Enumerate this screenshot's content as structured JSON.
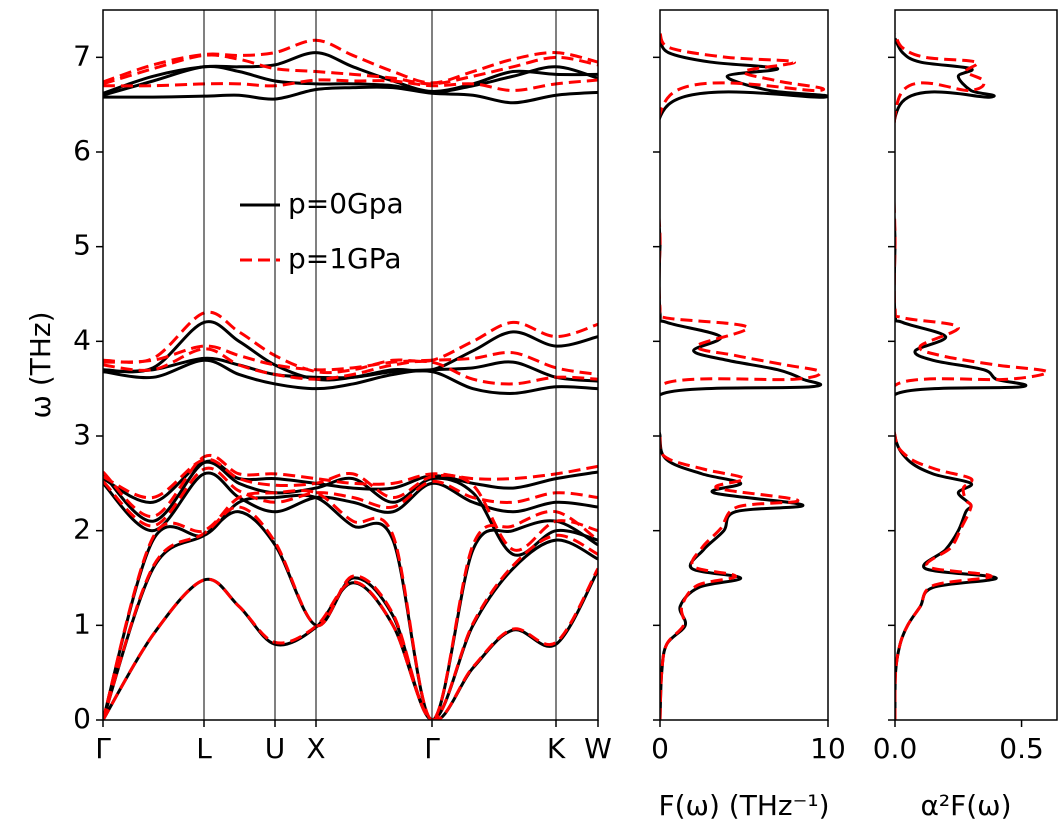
{
  "chart_data": [
    {
      "type": "band",
      "ylabel": "ω (THz)",
      "x": [
        0,
        0.5,
        1.01,
        1.36,
        1.72,
        2.13,
        2.5,
        2.9,
        3.29,
        3.7,
        4.1,
        4.53,
        4.95
      ],
      "xlim": [
        0,
        4.95
      ],
      "xticks": [
        {
          "value": 0,
          "label": "Γ"
        },
        {
          "value": 1.01,
          "label": "L"
        },
        {
          "value": 1.72,
          "label": "U"
        },
        {
          "value": 2.13,
          "label": "X"
        },
        {
          "value": 3.29,
          "label": "Γ"
        },
        {
          "value": 4.53,
          "label": "K"
        },
        {
          "value": 4.95,
          "label": "W"
        }
      ],
      "ylim": [
        0,
        7.5
      ],
      "yticks": [
        0,
        1,
        2,
        3,
        4,
        5,
        6,
        7
      ],
      "legend": true,
      "series": [
        {
          "name": "p=0Gpa",
          "color": "#000000",
          "dashed": false,
          "values": [
            [
              0,
              0.9,
              1.48,
              1.2,
              0.8,
              0.98,
              1.45,
              1.0,
              0,
              0.55,
              0.95,
              0.8,
              1.58
            ],
            [
              0,
              1.6,
              1.95,
              2.2,
              1.85,
              1.0,
              1.5,
              1.1,
              0,
              1.0,
              1.6,
              1.9,
              1.7
            ],
            [
              0,
              1.9,
              1.95,
              2.3,
              2.35,
              2.35,
              2.05,
              1.9,
              0,
              1.8,
              2.0,
              2.1,
              1.85
            ],
            [
              2.5,
              2.0,
              2.6,
              2.35,
              2.2,
              2.35,
              2.3,
              2.2,
              2.5,
              2.3,
              2.2,
              2.3,
              2.25
            ],
            [
              2.55,
              2.3,
              2.72,
              2.5,
              2.4,
              2.45,
              2.55,
              2.3,
              2.55,
              2.4,
              1.75,
              2.0,
              1.9
            ],
            [
              2.6,
              2.1,
              2.72,
              2.55,
              2.55,
              2.5,
              2.45,
              2.45,
              2.58,
              2.5,
              2.45,
              2.55,
              2.62
            ],
            [
              3.68,
              3.62,
              3.8,
              3.65,
              3.55,
              3.5,
              3.55,
              3.65,
              3.68,
              3.5,
              3.45,
              3.52,
              3.5
            ],
            [
              3.68,
              3.7,
              3.82,
              3.75,
              3.65,
              3.62,
              3.62,
              3.68,
              3.7,
              3.72,
              3.78,
              3.62,
              3.58
            ],
            [
              3.7,
              3.72,
              4.2,
              4.0,
              3.75,
              3.6,
              3.62,
              3.7,
              3.7,
              3.9,
              4.1,
              3.95,
              4.05
            ],
            [
              6.58,
              6.58,
              6.59,
              6.6,
              6.56,
              6.66,
              6.68,
              6.68,
              6.62,
              6.6,
              6.52,
              6.6,
              6.63
            ],
            [
              6.6,
              6.75,
              6.9,
              6.85,
              6.75,
              6.72,
              6.72,
              6.7,
              6.63,
              6.7,
              6.8,
              6.9,
              6.78
            ],
            [
              6.62,
              6.8,
              6.9,
              6.9,
              6.92,
              7.05,
              6.9,
              6.75,
              6.64,
              6.72,
              6.85,
              6.82,
              6.82
            ]
          ]
        },
        {
          "name": "p=1GPa",
          "color": "#ff0000",
          "dashed": true,
          "values": [
            [
              0,
              0.9,
              1.48,
              1.2,
              0.82,
              0.99,
              1.46,
              1.0,
              0,
              0.56,
              0.96,
              0.82,
              1.6
            ],
            [
              0,
              1.62,
              1.97,
              2.25,
              1.88,
              1.0,
              1.52,
              1.12,
              0,
              1.02,
              1.63,
              1.95,
              1.75
            ],
            [
              0,
              1.93,
              2.0,
              2.35,
              2.4,
              2.4,
              2.1,
              1.95,
              0,
              1.85,
              2.05,
              2.2,
              1.9
            ],
            [
              2.52,
              2.05,
              2.65,
              2.42,
              2.3,
              2.4,
              2.35,
              2.25,
              2.52,
              2.35,
              2.3,
              2.4,
              2.35
            ],
            [
              2.57,
              2.35,
              2.75,
              2.55,
              2.48,
              2.5,
              2.6,
              2.35,
              2.57,
              2.48,
              1.8,
              2.1,
              2.0
            ],
            [
              2.62,
              2.15,
              2.78,
              2.6,
              2.6,
              2.55,
              2.5,
              2.5,
              2.6,
              2.55,
              2.55,
              2.6,
              2.68
            ],
            [
              3.75,
              3.7,
              3.92,
              3.75,
              3.65,
              3.6,
              3.65,
              3.75,
              3.78,
              3.6,
              3.55,
              3.62,
              3.6
            ],
            [
              3.78,
              3.8,
              3.95,
              3.85,
              3.75,
              3.7,
              3.72,
              3.78,
              3.8,
              3.82,
              3.88,
              3.72,
              3.65
            ],
            [
              3.8,
              3.82,
              4.3,
              4.1,
              3.85,
              3.68,
              3.7,
              3.8,
              3.8,
              4.0,
              4.2,
              4.05,
              4.18
            ],
            [
              6.7,
              6.7,
              6.72,
              6.72,
              6.7,
              6.76,
              6.75,
              6.75,
              6.7,
              6.72,
              6.65,
              6.72,
              6.76
            ],
            [
              6.72,
              6.88,
              7.02,
              6.98,
              6.88,
              6.85,
              6.82,
              6.78,
              6.72,
              6.8,
              6.9,
              7.0,
              6.92
            ],
            [
              6.74,
              6.92,
              7.03,
              7.02,
              7.05,
              7.18,
              7.02,
              6.85,
              6.73,
              6.85,
              6.98,
              7.05,
              6.95
            ]
          ]
        }
      ]
    },
    {
      "type": "dos",
      "xlabel": "F(ω) (THz⁻¹)",
      "xlim": [
        0,
        10
      ],
      "xticks": [
        0,
        10
      ],
      "ylim": [
        0,
        7.5
      ],
      "yticks": [
        0,
        1,
        2,
        3,
        4,
        5,
        6,
        7
      ],
      "series": [
        {
          "color": "#000000",
          "dashed": false,
          "y": [
            0,
            0.5,
            0.8,
            1.0,
            1.2,
            1.4,
            1.5,
            1.6,
            1.8,
            2.0,
            2.2,
            2.27,
            2.4,
            2.5,
            2.6,
            2.75,
            3.0,
            3.45,
            3.52,
            3.6,
            3.7,
            3.8,
            3.9,
            4.05,
            4.2,
            4.3,
            5.0,
            6.5,
            6.58,
            6.65,
            6.8,
            6.88,
            6.95,
            7.05,
            7.2
          ],
          "values": [
            0,
            0.1,
            0.4,
            1.5,
            1.2,
            2.3,
            4.8,
            1.9,
            2.6,
            3.8,
            4.5,
            8.5,
            3.2,
            4.8,
            2.5,
            0.4,
            0,
            0.2,
            9,
            8.5,
            7,
            4,
            2,
            3.6,
            0.4,
            0,
            0,
            0.5,
            9.8,
            6.5,
            4,
            7,
            3,
            0.5,
            0
          ]
        },
        {
          "color": "#ff0000",
          "dashed": true,
          "y": [
            0,
            0.5,
            0.8,
            1.0,
            1.2,
            1.42,
            1.52,
            1.62,
            1.82,
            2.02,
            2.25,
            2.32,
            2.45,
            2.55,
            2.65,
            2.78,
            3.0,
            3.55,
            3.6,
            3.68,
            3.75,
            3.85,
            3.95,
            4.15,
            4.25,
            4.35,
            5.0,
            6.6,
            6.65,
            6.75,
            6.85,
            6.95,
            7.0,
            7.1,
            7.25
          ],
          "values": [
            0,
            0.1,
            0.4,
            1.4,
            1.3,
            2.2,
            4.5,
            2.0,
            2.5,
            3.6,
            4.6,
            8.2,
            3.4,
            5.0,
            2.6,
            0.3,
            0,
            0.2,
            8,
            9.5,
            7.5,
            4.5,
            2.2,
            5.2,
            0.3,
            0,
            0,
            0.6,
            9.5,
            7,
            5,
            8,
            4,
            0.6,
            0
          ]
        }
      ]
    },
    {
      "type": "dos",
      "xlabel": "α²F(ω)",
      "xlim": [
        0,
        0.64
      ],
      "xticks": [
        {
          "value": 0,
          "label": "0.0"
        },
        {
          "value": 0.5,
          "label": "0.5"
        }
      ],
      "ylim": [
        0,
        7.5
      ],
      "yticks": [
        0,
        1,
        2,
        3,
        4,
        5,
        6,
        7
      ],
      "series": [
        {
          "color": "#000000",
          "dashed": false,
          "y": [
            0,
            0.5,
            0.8,
            1.0,
            1.2,
            1.4,
            1.5,
            1.6,
            1.8,
            2.0,
            2.2,
            2.27,
            2.4,
            2.5,
            2.6,
            2.75,
            3.0,
            3.45,
            3.52,
            3.6,
            3.7,
            3.8,
            3.9,
            4.05,
            4.2,
            4.3,
            5.0,
            6.5,
            6.58,
            6.65,
            6.8,
            6.88,
            6.95,
            7.05,
            7.2
          ],
          "values": [
            0,
            0.002,
            0.02,
            0.05,
            0.1,
            0.15,
            0.4,
            0.12,
            0.2,
            0.25,
            0.28,
            0.3,
            0.25,
            0.3,
            0.15,
            0.05,
            0,
            0.01,
            0.5,
            0.4,
            0.35,
            0.15,
            0.08,
            0.2,
            0.03,
            0,
            0,
            0.02,
            0.38,
            0.3,
            0.25,
            0.3,
            0.1,
            0.03,
            0
          ]
        },
        {
          "color": "#ff0000",
          "dashed": true,
          "y": [
            0,
            0.5,
            0.8,
            1.0,
            1.2,
            1.42,
            1.52,
            1.62,
            1.82,
            2.02,
            2.25,
            2.32,
            2.45,
            2.55,
            2.65,
            2.78,
            3.0,
            3.55,
            3.6,
            3.68,
            3.75,
            3.85,
            3.95,
            4.15,
            4.25,
            4.35,
            5.0,
            6.6,
            6.65,
            6.75,
            6.85,
            6.95,
            7.0,
            7.1,
            7.25
          ],
          "values": [
            0,
            0.002,
            0.02,
            0.05,
            0.1,
            0.15,
            0.38,
            0.13,
            0.22,
            0.26,
            0.3,
            0.28,
            0.27,
            0.3,
            0.16,
            0.05,
            0,
            0.01,
            0.45,
            0.6,
            0.4,
            0.18,
            0.1,
            0.25,
            0.03,
            0,
            0,
            0.02,
            0.3,
            0.35,
            0.28,
            0.32,
            0.12,
            0.03,
            0
          ]
        }
      ]
    }
  ]
}
